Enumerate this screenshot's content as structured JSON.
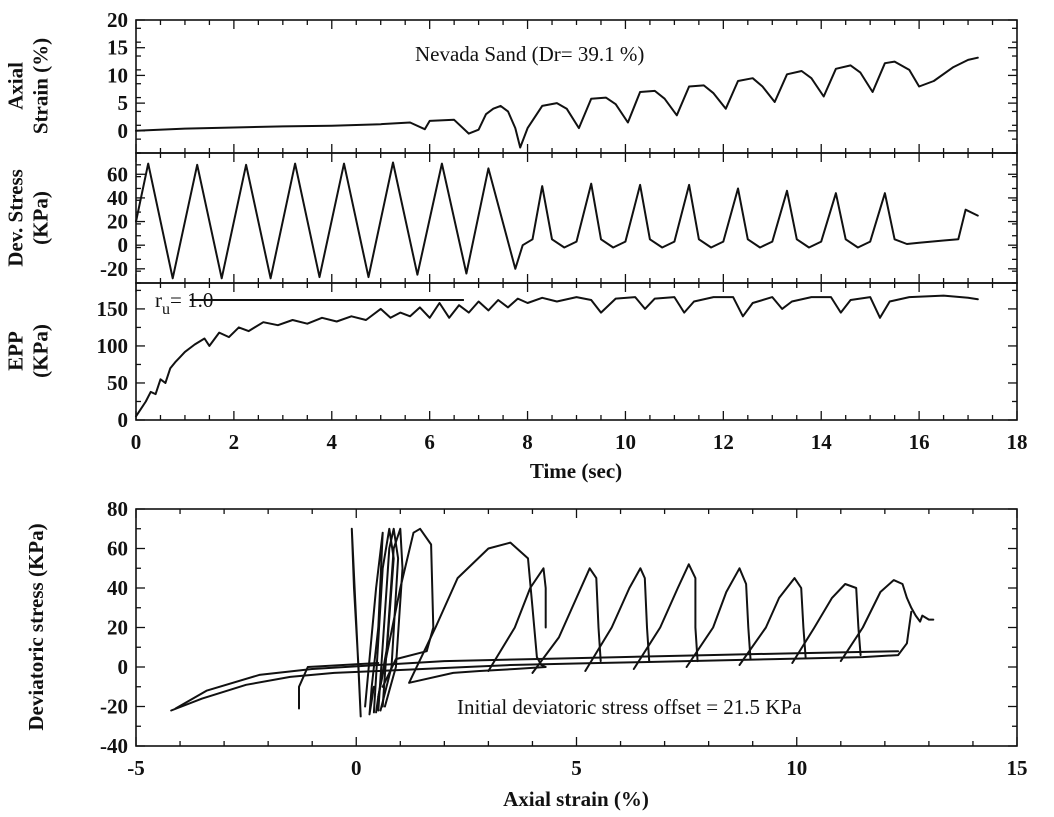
{
  "chart_data": [
    {
      "type": "line",
      "panel": "axial-strain-vs-time",
      "ylabel": [
        "Axial",
        "Strain (%)"
      ],
      "annotation": "Nevada Sand (Dr= 39.1 %)",
      "xlim": [
        0,
        18
      ],
      "ylim": [
        -4,
        20
      ],
      "yticks": [
        0,
        5,
        10,
        15,
        20
      ],
      "ytick_labels": [
        "0",
        "5",
        "10",
        "15",
        "20"
      ],
      "series": [
        {
          "x": [
            0,
            1,
            2,
            3,
            4,
            5,
            5.6,
            5.9,
            6.0,
            6.5,
            6.8,
            7.0,
            7.15,
            7.3,
            7.45,
            7.6,
            7.75,
            7.85,
            8.0,
            8.3,
            8.6,
            8.8,
            9.05,
            9.3,
            9.6,
            9.8,
            10.05,
            10.3,
            10.6,
            10.8,
            11.05,
            11.3,
            11.6,
            11.8,
            12.05,
            12.3,
            12.6,
            12.8,
            13.05,
            13.3,
            13.6,
            13.8,
            14.05,
            14.3,
            14.6,
            14.8,
            15.05,
            15.3,
            15.5,
            15.8,
            16.0,
            16.3,
            16.7,
            17.0,
            17.2
          ],
          "y": [
            0,
            0.4,
            0.6,
            0.8,
            0.9,
            1.2,
            1.5,
            0.3,
            1.8,
            2.0,
            -0.5,
            0.2,
            3.0,
            4.0,
            4.5,
            3.5,
            0.5,
            -3.0,
            0.5,
            4.5,
            5.0,
            4.0,
            0.5,
            5.8,
            6.0,
            4.8,
            1.5,
            7.0,
            7.2,
            5.8,
            2.8,
            8.0,
            8.2,
            6.8,
            4.0,
            9.0,
            9.5,
            8.0,
            5.2,
            10.2,
            10.8,
            9.5,
            6.2,
            11.2,
            11.8,
            10.5,
            7.0,
            12.2,
            12.5,
            11.0,
            8.0,
            9.0,
            11.5,
            12.8,
            13.2
          ]
        }
      ]
    },
    {
      "type": "line",
      "panel": "deviatoric-stress-vs-time",
      "ylabel": [
        "Dev. Stress",
        "(KPa)"
      ],
      "xlim": [
        0,
        18
      ],
      "ylim": [
        -32,
        78
      ],
      "yticks": [
        -20,
        0,
        20,
        40,
        60
      ],
      "ytick_labels": [
        "-20",
        "0",
        "20",
        "40",
        "60"
      ],
      "series": [
        {
          "x": [
            0,
            0.25,
            0.75,
            1.25,
            1.75,
            2.25,
            2.75,
            3.25,
            3.75,
            4.25,
            4.75,
            5.25,
            5.75,
            6.25,
            6.75,
            7.2,
            7.75,
            7.9,
            8.1,
            8.3,
            8.5,
            8.75,
            9.0,
            9.3,
            9.5,
            9.75,
            10.0,
            10.3,
            10.5,
            10.75,
            11.0,
            11.3,
            11.5,
            11.75,
            12.0,
            12.3,
            12.5,
            12.75,
            13.0,
            13.3,
            13.5,
            13.75,
            14.0,
            14.3,
            14.5,
            14.75,
            15.0,
            15.3,
            15.5,
            15.75,
            16.0,
            16.5,
            16.8,
            16.95,
            17.2
          ],
          "y": [
            20,
            69,
            -28,
            68,
            -28,
            68,
            -28,
            69,
            -27,
            69,
            -27,
            70,
            -25,
            69,
            -24,
            65,
            -20,
            0,
            5,
            50,
            5,
            -2,
            3,
            52,
            5,
            -2,
            3,
            51,
            5,
            -2,
            3,
            51,
            5,
            -2,
            3,
            48,
            5,
            -2,
            3,
            46,
            5,
            -2,
            3,
            44,
            5,
            -2,
            3,
            44,
            5,
            1,
            2,
            4,
            5,
            30,
            25
          ]
        }
      ]
    },
    {
      "type": "line",
      "panel": "excess-pore-pressure-vs-time",
      "ylabel": [
        "EPP",
        "(KPa)"
      ],
      "xlabel": "Time (sec)",
      "annotation": "r",
      "annotation_sub": "u",
      "annotation_rest": "= 1.0",
      "reference_line": {
        "x_start": 1.1,
        "x_end": 6.7,
        "y": 162
      },
      "xlim": [
        0,
        18
      ],
      "xticks": [
        0,
        2,
        4,
        6,
        8,
        10,
        12,
        14,
        16,
        18
      ],
      "xtick_labels": [
        "0",
        "2",
        "4",
        "6",
        "8",
        "10",
        "12",
        "14",
        "16",
        "18"
      ],
      "ylim": [
        0,
        185
      ],
      "yticks": [
        0,
        50,
        100,
        150
      ],
      "ytick_labels": [
        "0",
        "50",
        "100",
        "150"
      ],
      "series": [
        {
          "x": [
            0,
            0.1,
            0.2,
            0.3,
            0.4,
            0.5,
            0.6,
            0.7,
            0.8,
            0.9,
            1.0,
            1.2,
            1.4,
            1.5,
            1.7,
            1.9,
            2.1,
            2.3,
            2.6,
            2.9,
            3.2,
            3.5,
            3.8,
            4.1,
            4.4,
            4.7,
            5.0,
            5.2,
            5.4,
            5.6,
            5.8,
            6.0,
            6.2,
            6.4,
            6.6,
            6.8,
            7.0,
            7.2,
            7.4,
            7.6,
            7.8,
            8.0,
            8.3,
            8.6,
            9.0,
            9.3,
            9.5,
            9.8,
            10.2,
            10.4,
            10.6,
            11.0,
            11.2,
            11.4,
            11.8,
            12.2,
            12.4,
            12.6,
            13.0,
            13.2,
            13.4,
            13.8,
            14.2,
            14.4,
            14.6,
            15.0,
            15.2,
            15.4,
            15.8,
            16.5,
            17.0,
            17.2
          ],
          "y": [
            5,
            15,
            25,
            38,
            35,
            55,
            50,
            70,
            78,
            85,
            92,
            102,
            110,
            100,
            118,
            112,
            125,
            120,
            132,
            128,
            135,
            130,
            138,
            133,
            140,
            135,
            150,
            138,
            145,
            140,
            152,
            138,
            158,
            138,
            155,
            145,
            160,
            148,
            162,
            152,
            164,
            158,
            165,
            160,
            166,
            162,
            145,
            164,
            166,
            150,
            164,
            166,
            145,
            160,
            166,
            166,
            140,
            158,
            166,
            150,
            160,
            166,
            166,
            145,
            162,
            166,
            138,
            160,
            166,
            168,
            165,
            163
          ]
        }
      ]
    },
    {
      "type": "line",
      "panel": "deviatoric-stress-vs-axial-strain",
      "xlabel": "Axial strain (%)",
      "ylabel": "Deviatoric stress (KPa)",
      "annotation": "Initial deviatoric stress offset = 21.5 KPa",
      "xlim": [
        -5,
        15
      ],
      "xticks": [
        -5,
        0,
        5,
        10,
        15
      ],
      "xtick_labels": [
        "-5",
        "0",
        "5",
        "10",
        "15"
      ],
      "ylim": [
        -40,
        80
      ],
      "yticks": [
        -40,
        -20,
        0,
        20,
        40,
        60,
        80
      ],
      "ytick_labels": [
        "-40",
        "-20",
        "0",
        "20",
        "40",
        "60",
        "80"
      ],
      "series": [
        {
          "x": [
            -0.1,
            -0.05,
            0.05,
            0.1,
            -0.1
          ],
          "y": [
            70,
            40,
            0,
            -25,
            70
          ]
        },
        {
          "x": [
            0.2,
            0.45,
            0.6,
            0.5,
            0.35,
            0.3,
            0.4
          ],
          "y": [
            -20,
            40,
            68,
            20,
            -10,
            -24,
            -10
          ]
        },
        {
          "x": [
            0.4,
            0.6,
            0.75,
            0.85,
            0.7,
            0.5,
            0.45
          ],
          "y": [
            -23,
            50,
            70,
            55,
            10,
            -15,
            -23
          ]
        },
        {
          "x": [
            0.5,
            0.75,
            0.85,
            0.95,
            0.8,
            0.55
          ],
          "y": [
            -22,
            60,
            70,
            55,
            0,
            -22
          ]
        },
        {
          "x": [
            0.6,
            0.85,
            1.0,
            1.05,
            0.9,
            0.65
          ],
          "y": [
            -20,
            60,
            70,
            50,
            0,
            -20
          ]
        },
        {
          "x": [
            0.5,
            1.0,
            1.3,
            1.45,
            1.7,
            1.75,
            1.6,
            0.9,
            0.6
          ],
          "y": [
            -15,
            40,
            68,
            70,
            62,
            20,
            8,
            4,
            -10
          ]
        },
        {
          "x": [
            -1.3,
            -1.3,
            -1.1,
            0.5
          ],
          "y": [
            -21,
            -10,
            0,
            2
          ]
        },
        {
          "x": [
            -4.2,
            -3.5,
            -2.5,
            -1.5,
            -0.5,
            0.5,
            1.5,
            2.5,
            3.5,
            4.5,
            5.5,
            6.5,
            7.5,
            8.5,
            9.5,
            10.5,
            11.5,
            12.3,
            12.5,
            12.6
          ],
          "y": [
            -22,
            -16,
            -9,
            -5,
            -3,
            -2,
            -1,
            0,
            1,
            1.5,
            2,
            2.5,
            3,
            3.5,
            4,
            4.5,
            5,
            6,
            12,
            28
          ]
        },
        {
          "x": [
            -4.1,
            -3.4,
            -2.2,
            -1.0,
            0.5,
            2.0,
            4.0,
            6.0,
            8.0,
            10.0,
            12.3
          ],
          "y": [
            -21,
            -12,
            -4,
            -1,
            1,
            3,
            4,
            5,
            6,
            7,
            8
          ]
        },
        {
          "x": [
            1.2,
            1.8,
            2.3,
            3.0,
            3.5,
            3.9,
            4.0,
            4.1,
            4.2,
            4.3,
            3.6,
            2.8,
            2.2,
            1.2
          ],
          "y": [
            -8,
            20,
            45,
            60,
            63,
            55,
            30,
            5,
            1,
            0,
            -1,
            -2,
            -3,
            -8
          ]
        },
        {
          "x": [
            3.0,
            3.6,
            3.95,
            4.25,
            4.3,
            4.3
          ],
          "y": [
            -2,
            20,
            40,
            50,
            40,
            20
          ]
        },
        {
          "x": [
            4.0,
            4.6,
            5.0,
            5.3,
            5.45,
            5.5,
            5.55
          ],
          "y": [
            -3,
            15,
            35,
            50,
            45,
            20,
            3
          ]
        },
        {
          "x": [
            5.2,
            5.8,
            6.2,
            6.45,
            6.55,
            6.6,
            6.65
          ],
          "y": [
            -2,
            20,
            40,
            50,
            45,
            20,
            3
          ]
        },
        {
          "x": [
            6.3,
            6.9,
            7.3,
            7.55,
            7.7,
            7.7,
            7.75
          ],
          "y": [
            -1,
            20,
            40,
            52,
            45,
            20,
            3
          ]
        },
        {
          "x": [
            7.5,
            8.1,
            8.4,
            8.7,
            8.85,
            8.9,
            8.95
          ],
          "y": [
            0,
            20,
            38,
            50,
            42,
            20,
            4
          ]
        },
        {
          "x": [
            8.7,
            9.3,
            9.6,
            9.95,
            10.1,
            10.15,
            10.2
          ],
          "y": [
            1,
            20,
            35,
            45,
            40,
            20,
            5
          ]
        },
        {
          "x": [
            9.9,
            10.4,
            10.8,
            11.1,
            11.35,
            11.4,
            11.45
          ],
          "y": [
            2,
            20,
            35,
            42,
            40,
            20,
            6
          ]
        },
        {
          "x": [
            11.0,
            11.5,
            11.9,
            12.2,
            12.4,
            12.5,
            12.6,
            12.7,
            12.8,
            12.85,
            13.0,
            13.1
          ],
          "y": [
            3,
            20,
            38,
            44,
            42,
            35,
            30,
            26,
            23,
            26,
            24,
            24
          ]
        }
      ]
    }
  ]
}
